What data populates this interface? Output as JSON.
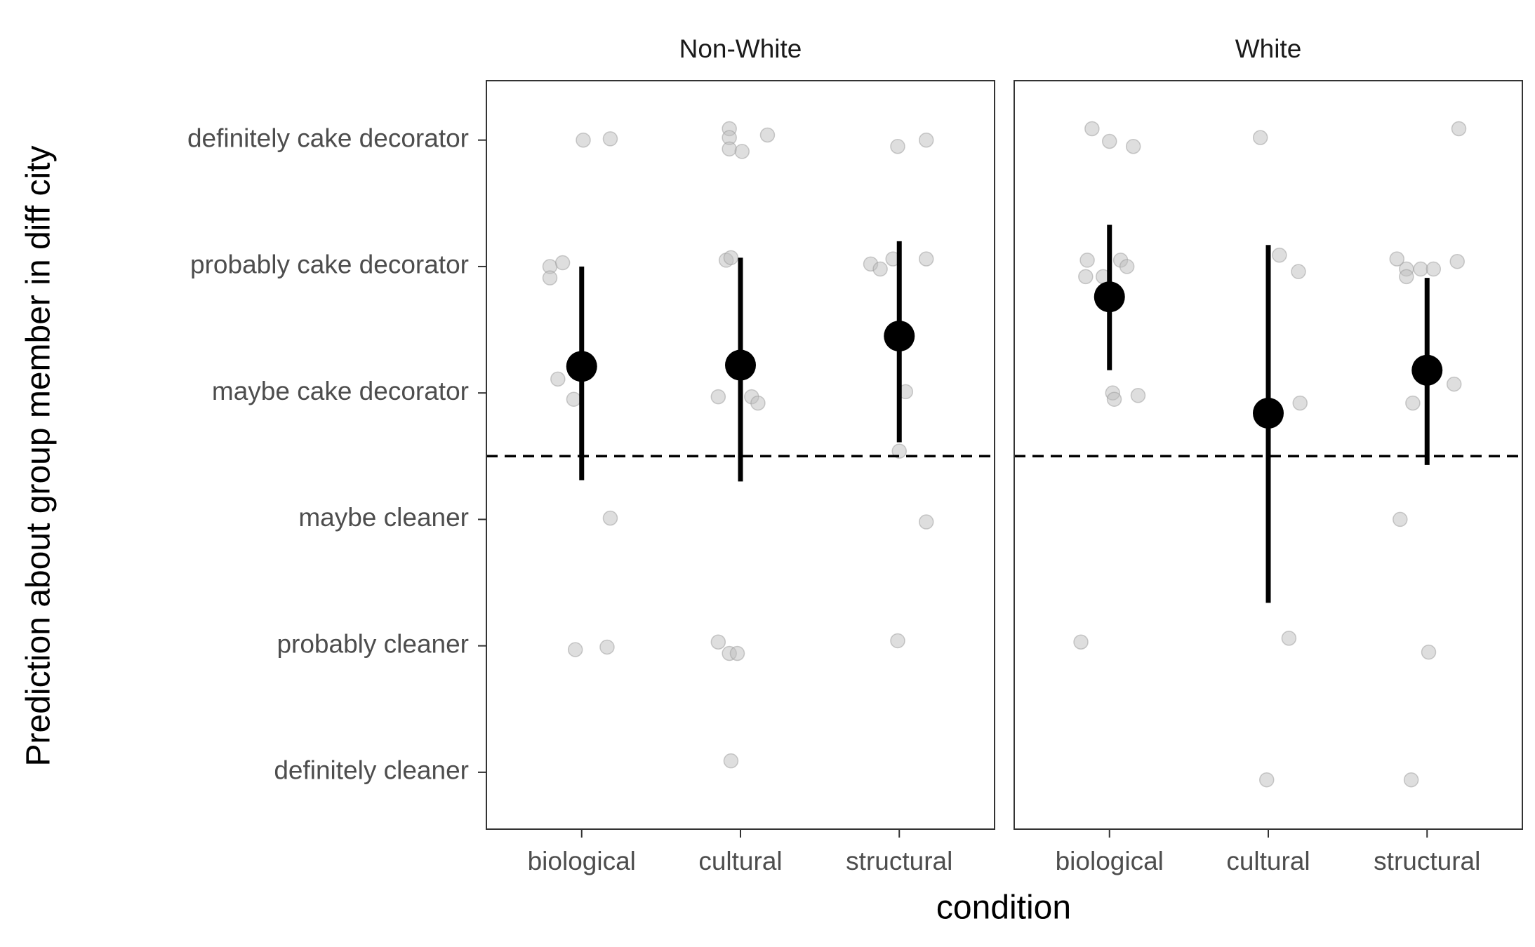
{
  "chart_data": {
    "type": "scatter",
    "y_label": "Prediction about group member in diff city",
    "x_label": "condition",
    "xlim": [
      0.4,
      3.6
    ],
    "xticks": [
      {
        "value": 1,
        "label": "biological"
      },
      {
        "value": 2,
        "label": "cultural"
      },
      {
        "value": 3,
        "label": "structural"
      }
    ],
    "ylim": [
      0.55,
      6.47
    ],
    "yticks": [
      {
        "value": 1,
        "label": "definitely cleaner"
      },
      {
        "value": 2,
        "label": "probably cleaner"
      },
      {
        "value": 3,
        "label": "maybe cleaner"
      },
      {
        "value": 4,
        "label": "maybe cake decorator"
      },
      {
        "value": 5,
        "label": "probably cake decorator"
      },
      {
        "value": 6,
        "label": "definitely cake decorator"
      }
    ],
    "hline": 3.5,
    "point_color": "#bdbdbd",
    "summary_color": "#000000",
    "panels": [
      {
        "title": "Non-White",
        "points": {
          "x": [
            1.01,
            1.18,
            0.8,
            0.88,
            0.8,
            0.85,
            0.95,
            1.18,
            0.96,
            1.16,
            1.93,
            1.93,
            1.93,
            2.01,
            2.17,
            1.91,
            1.94,
            1.86,
            2.07,
            2.11,
            1.86,
            1.93,
            1.98,
            1.94,
            2.99,
            3.17,
            2.82,
            2.88,
            2.96,
            3.17,
            3.04,
            3.0,
            3.17,
            2.99
          ],
          "y": [
            6.0,
            6.01,
            5.0,
            5.03,
            4.91,
            4.11,
            3.95,
            3.01,
            1.97,
            1.99,
            6.09,
            6.02,
            5.93,
            5.91,
            6.04,
            5.05,
            5.07,
            3.97,
            3.97,
            3.92,
            2.03,
            1.94,
            1.94,
            1.09,
            5.95,
            6.0,
            5.02,
            4.98,
            5.06,
            5.06,
            4.01,
            3.54,
            2.98,
            2.04
          ]
        },
        "summary": {
          "x": [
            1,
            2,
            3
          ],
          "values": [
            4.21,
            4.22,
            4.45
          ],
          "lower": [
            3.31,
            3.3,
            3.61
          ],
          "upper": [
            5.0,
            5.07,
            5.2
          ]
        }
      },
      {
        "title": "White",
        "points": {
          "x": [
            0.89,
            1.0,
            1.15,
            0.86,
            0.85,
            0.96,
            1.07,
            1.11,
            1.02,
            1.03,
            1.18,
            0.82,
            1.95,
            2.07,
            2.19,
            2.2,
            2.13,
            1.99,
            3.2,
            2.81,
            2.87,
            2.87,
            2.96,
            3.04,
            3.19,
            3.17,
            2.91,
            2.83,
            3.01,
            2.9
          ],
          "y": [
            6.09,
            5.99,
            5.95,
            5.05,
            4.92,
            4.92,
            5.05,
            5.0,
            4.0,
            3.95,
            3.98,
            2.03,
            6.02,
            5.09,
            4.96,
            3.92,
            2.06,
            0.94,
            6.09,
            5.06,
            4.98,
            4.92,
            4.98,
            4.98,
            5.04,
            4.07,
            3.92,
            3.0,
            1.95,
            0.94
          ]
        },
        "summary": {
          "x": [
            1,
            2,
            3
          ],
          "values": [
            4.76,
            3.84,
            4.18
          ],
          "lower": [
            4.18,
            2.34,
            3.43
          ],
          "upper": [
            5.33,
            5.17,
            4.91
          ]
        }
      }
    ]
  }
}
